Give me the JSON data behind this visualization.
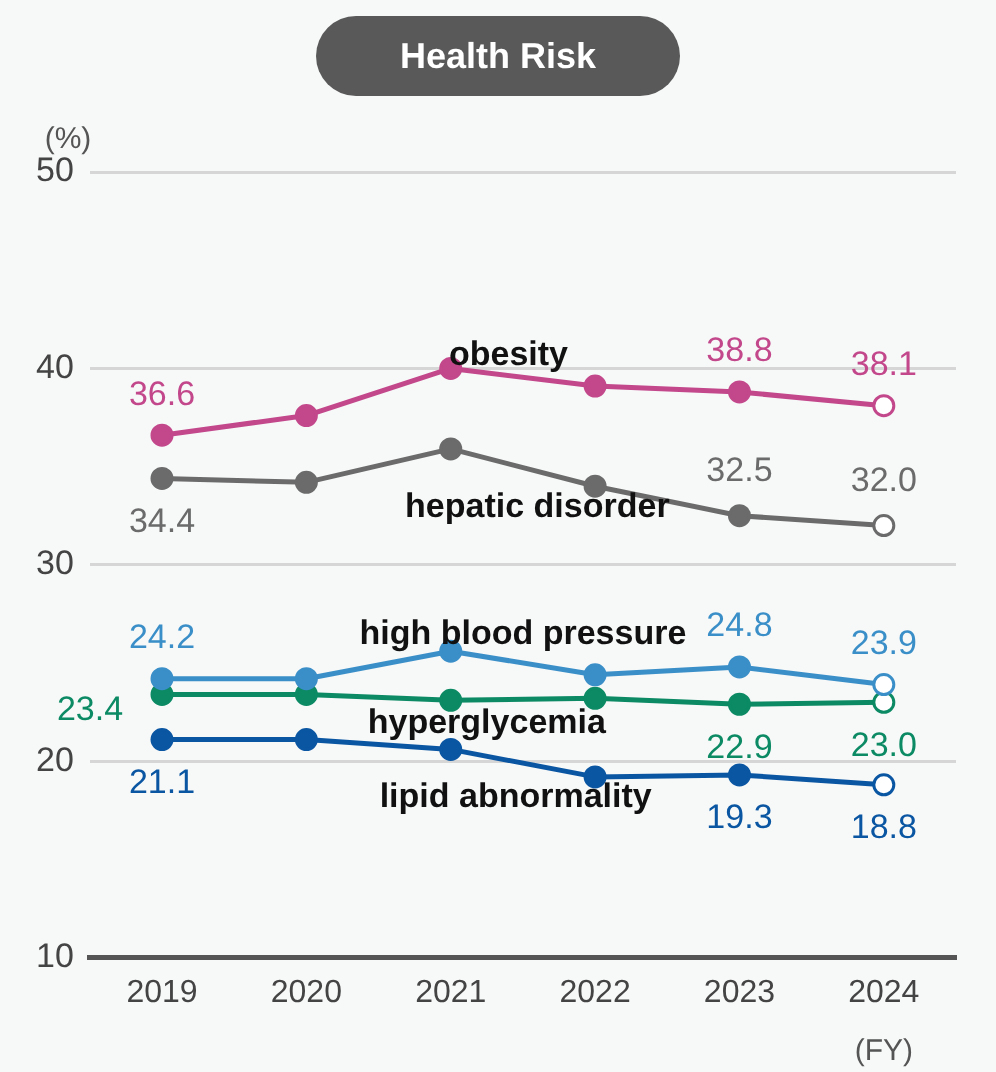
{
  "chart_data": {
    "type": "line",
    "title": "Health Risk",
    "ylabel": "(%)",
    "xlabel": "(FY)",
    "categories": [
      "2019",
      "2020",
      "2021",
      "2022",
      "2023",
      "2024"
    ],
    "series": [
      {
        "name": "obesity",
        "color": "#c2478b",
        "values": [
          36.6,
          37.6,
          40.0,
          39.1,
          38.8,
          38.1
        ],
        "value_labels": [
          "36.6",
          null,
          null,
          null,
          "38.8",
          "38.1"
        ]
      },
      {
        "name": "hepatic disorder",
        "color": "#6b6b6b",
        "values": [
          34.4,
          34.2,
          35.9,
          34.0,
          32.5,
          32.0
        ],
        "value_labels": [
          "34.4",
          null,
          null,
          null,
          "32.5",
          "32.0"
        ]
      },
      {
        "name": "high blood pressure",
        "color": "#3a8fc8",
        "values": [
          24.2,
          24.2,
          25.6,
          24.4,
          24.8,
          23.9
        ],
        "value_labels": [
          "24.2",
          null,
          null,
          null,
          "24.8",
          "23.9"
        ]
      },
      {
        "name": "hyperglycemia",
        "color": "#0b8a63",
        "values": [
          23.4,
          23.4,
          23.1,
          23.2,
          22.9,
          23.0
        ],
        "value_labels": [
          "23.4",
          null,
          null,
          null,
          "22.9",
          "23.0"
        ]
      },
      {
        "name": "lipid abnormality",
        "color": "#0a56a2",
        "values": [
          21.1,
          21.1,
          20.6,
          19.2,
          19.3,
          18.8
        ],
        "value_labels": [
          "21.1",
          null,
          null,
          null,
          "19.3",
          "18.8"
        ]
      }
    ],
    "ylim": [
      10,
      50
    ],
    "yticks": [
      10,
      20,
      30,
      40,
      50
    ],
    "grid": "y",
    "marker": "circle",
    "line_style": "solid",
    "legend": false
  }
}
